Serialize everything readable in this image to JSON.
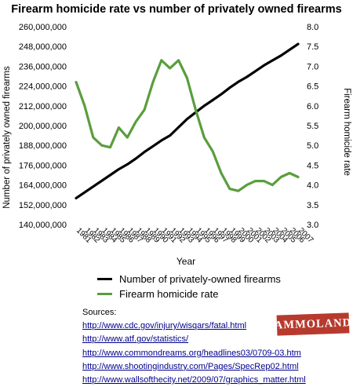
{
  "chart_data": {
    "type": "line",
    "title": "Firearm homicide rate vs number of privately owned firearms",
    "xlabel": "Year",
    "ylabel_left": "Number of privately owned firearms",
    "ylabel_right": "Firearm homicide rate",
    "x": [
      "1981",
      "1982",
      "1983",
      "1984",
      "1985",
      "1986",
      "1987",
      "1988",
      "1989",
      "1990",
      "1991",
      "1992",
      "1993",
      "1994",
      "1995",
      "1996",
      "1997",
      "1998",
      "1999",
      "2000",
      "2001",
      "2002",
      "2003",
      "2004",
      "2005",
      "2006",
      "2007"
    ],
    "ylim_left": [
      140000000,
      260000000
    ],
    "ylim_right": [
      3.0,
      8.0
    ],
    "yticks_left": [
      "140,000,000",
      "152,000,000",
      "164,000,000",
      "176,000,000",
      "188,000,000",
      "200,000,000",
      "212,000,000",
      "224,000,000",
      "236,000,000",
      "248,000,000",
      "260,000,000"
    ],
    "yticks_right": [
      "3.0",
      "3.5",
      "4.0",
      "4.5",
      "5.0",
      "5.5",
      "6.0",
      "6.5",
      "7.0",
      "7.5",
      "8.0"
    ],
    "series": [
      {
        "name": "Number of privately-owned firearms",
        "axis": "left",
        "color": "#000000",
        "values": [
          156000000,
          159500000,
          163000000,
          166500000,
          170000000,
          173500000,
          176500000,
          180000000,
          184000000,
          187500000,
          191000000,
          194000000,
          199000000,
          204000000,
          208000000,
          212000000,
          215500000,
          219000000,
          223000000,
          226500000,
          229500000,
          233000000,
          236500000,
          239500000,
          242500000,
          246000000,
          249500000
        ]
      },
      {
        "name": "Firearm homicide rate",
        "axis": "right",
        "color": "#5a9e3d",
        "values": [
          6.6,
          6.0,
          5.2,
          5.0,
          4.95,
          5.45,
          5.2,
          5.6,
          5.9,
          6.6,
          7.15,
          6.95,
          7.15,
          6.7,
          5.9,
          5.2,
          4.85,
          4.3,
          3.9,
          3.85,
          4.0,
          4.1,
          4.1,
          4.0,
          4.2,
          4.3,
          4.2
        ]
      }
    ],
    "grid": false,
    "legend_position": "below"
  },
  "sources": {
    "heading": "Sources:",
    "links": [
      "http://www.cdc.gov/injury/wisqars/fatal.html",
      "http://www.atf.gov/statistics/",
      "http://www.commondreams.org/headlines03/0709-03.htm",
      "http://www.shootingindustry.com/Pages/SpecRep02.html",
      "http://www.wallsofthecity.net/2009/07/graphics_matter.html"
    ]
  },
  "watermark": "AMMOLAND"
}
